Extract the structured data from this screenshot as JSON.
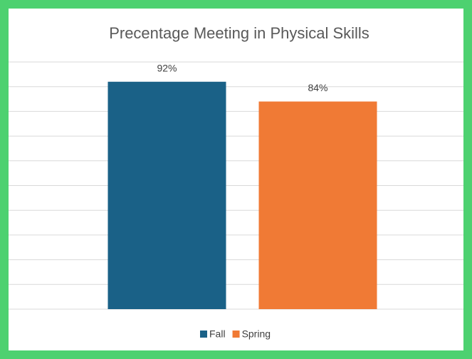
{
  "chart_data": {
    "type": "bar",
    "title": "Precentage Meeting in Physical Skills",
    "categories": [
      null
    ],
    "series": [
      {
        "name": "Fall",
        "color": "#1a6187",
        "values": [
          92
        ],
        "value_labels": [
          "92%"
        ]
      },
      {
        "name": "Spring",
        "color": "#f07a35",
        "values": [
          84
        ],
        "value_labels": [
          "84%"
        ]
      }
    ],
    "ylim": [
      0,
      100
    ],
    "yticks": [
      0,
      10,
      20,
      30,
      40,
      50,
      60,
      70,
      80,
      90,
      100
    ],
    "grid": true,
    "legend": "bottom"
  }
}
